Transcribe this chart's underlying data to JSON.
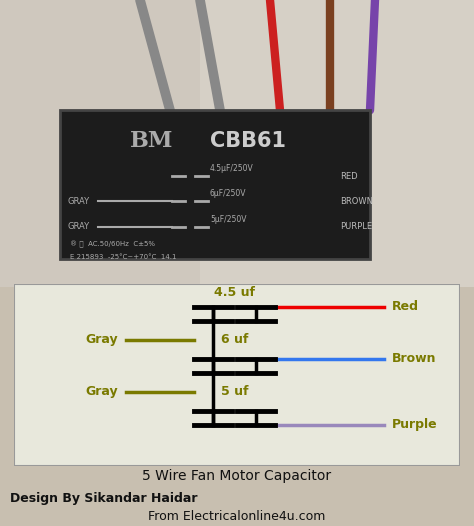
{
  "bg_color": "#c8bfb0",
  "photo_bg_top": "#d8d0c8",
  "photo_bg_bot": "#c0b8a8",
  "cap_body_color": "#1c1c1c",
  "cap_edge_color": "#444444",
  "diagram_bg": "#e8e8dc",
  "diagram_border": "#999999",
  "title": "5 Wire Fan Motor Capacitor",
  "subtitle_left": "Design By Sikandar Haidar",
  "subtitle_right": "From Electricalonline4u.com",
  "capacitor_labels": [
    "4.5 uf",
    "6 uf",
    "5 uf"
  ],
  "left_labels": [
    "Gray",
    "Gray"
  ],
  "right_labels": [
    "Red",
    "Brown",
    "Purple"
  ],
  "olive": "#7a7a00",
  "red_wire": "#ee0000",
  "blue_wire": "#3377ee",
  "purple_wire": "#9988bb",
  "gray_wire_photo": "#888888",
  "red_wire_photo": "#cc2020",
  "brown_wire_photo": "#7a4020",
  "purple_wire_photo": "#7744aa",
  "cap_text_color": "#bbbbbb",
  "cap_label_color": "#999999"
}
